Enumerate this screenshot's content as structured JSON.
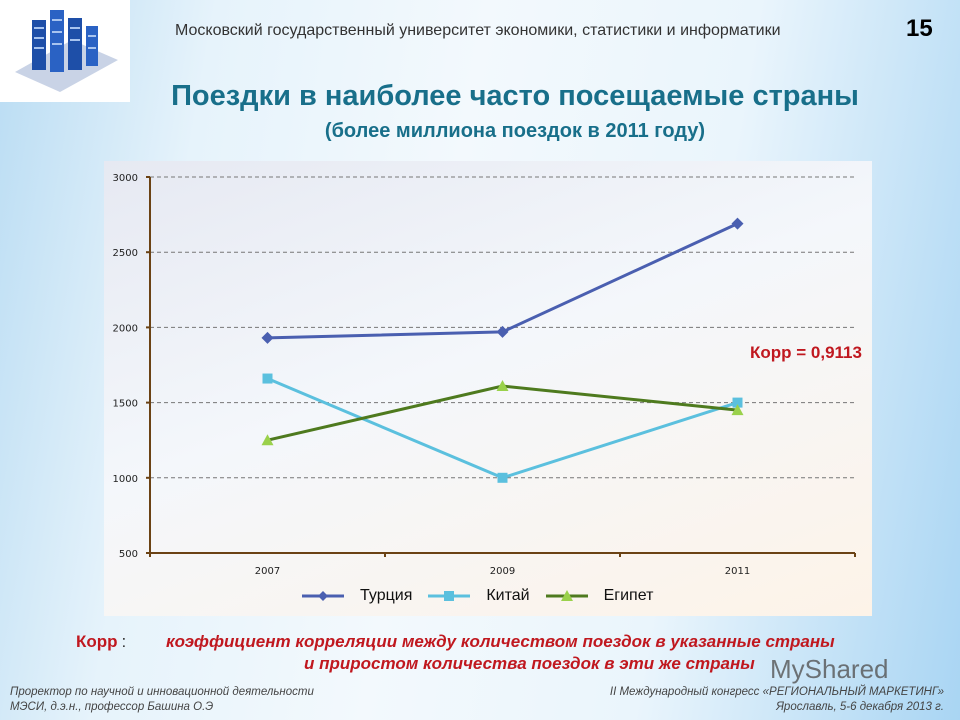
{
  "header": {
    "university": "Московский государственный университет экономики, статистики и информатики",
    "page_number": "15"
  },
  "title": "Поездки в наиболее часто посещаемые страны",
  "subtitle": "(более миллиона поездок в 2011 году)",
  "correlation_label": "Корр =  0,9113",
  "legend": [
    {
      "name": "Турция",
      "color": "#4a5fb0",
      "marker": "diamond"
    },
    {
      "name": "Китай",
      "color": "#5bc0de",
      "marker": "square"
    },
    {
      "name": "Египет",
      "color": "#4e7a1e",
      "marker": "triangle"
    }
  ],
  "note": {
    "term": "Корр",
    "colon": ":",
    "definition_line1": "коэффициент корреляции между количеством поездок в указанные страны",
    "definition_line2": "и приростом количества поездок в эти же страны"
  },
  "footer": {
    "left_line1": "Проректор по научной и инновационной деятельности",
    "left_line2": "МЭСИ, д.э.н., профессор Башина О.Э",
    "right_line1": "II Международный конгресс «РЕГИОНАЛЬНЫЙ МАРКЕТИНГ»",
    "right_line2": "Ярославль, 5-6 декабря 2013 г."
  },
  "watermark": "MyShared",
  "chart_data": {
    "type": "line",
    "title": "Поездки в наиболее часто посещаемые страны",
    "subtitle": "(более миллиона поездок в 2011 году)",
    "categories": [
      "2007",
      "2009",
      "2011"
    ],
    "series": [
      {
        "name": "Турция",
        "values": [
          1930,
          1970,
          2690
        ],
        "color": "#4a5fb0",
        "marker": "diamond"
      },
      {
        "name": "Китай",
        "values": [
          1660,
          1000,
          1500
        ],
        "color": "#5bc0de",
        "marker": "square"
      },
      {
        "name": "Египет",
        "values": [
          1250,
          1610,
          1450
        ],
        "color": "#4e7a1e",
        "marker": "triangle"
      }
    ],
    "yticks": [
      500,
      1000,
      1500,
      2000,
      2500,
      3000
    ],
    "ylim": [
      500,
      3000
    ],
    "xlabel": "",
    "ylabel": "",
    "grid": "horizontal dashed",
    "legend_position": "bottom",
    "annotations": [
      "Корр =  0,9113"
    ]
  }
}
